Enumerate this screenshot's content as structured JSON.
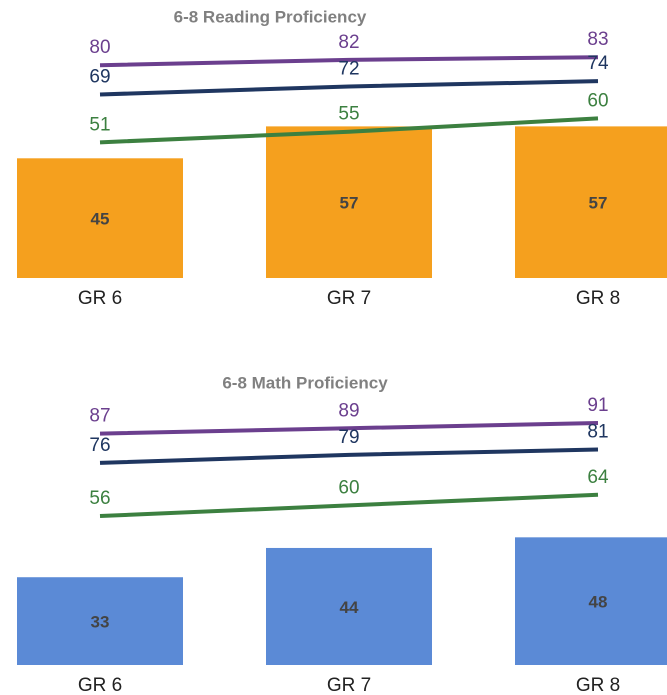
{
  "chart_data": [
    {
      "type": "bar_line",
      "title": "6-8 Reading Proficiency",
      "categories": [
        "GR 6",
        "GR 7",
        "GR 8"
      ],
      "values": [
        45,
        57,
        57
      ],
      "color": "#f5a01e",
      "ylim": [
        0,
        100
      ],
      "series": [
        {
          "color": "#6b3f8e",
          "values": [
            80,
            82,
            83
          ]
        },
        {
          "color": "#1f3660",
          "values": [
            69,
            72,
            74
          ]
        },
        {
          "color": "#3c8040",
          "values": [
            51,
            55,
            60
          ]
        }
      ]
    },
    {
      "type": "bar_line",
      "title": "6-8 Math Proficiency",
      "categories": [
        "GR 6",
        "GR 7",
        "GR 8"
      ],
      "values": [
        33,
        44,
        48
      ],
      "color": "#5b8ad6",
      "ylim": [
        0,
        100
      ],
      "series": [
        {
          "color": "#6b3f8e",
          "values": [
            87,
            89,
            91
          ]
        },
        {
          "color": "#1f3660",
          "values": [
            76,
            79,
            81
          ]
        },
        {
          "color": "#3c8040",
          "values": [
            56,
            60,
            64
          ]
        }
      ]
    }
  ]
}
